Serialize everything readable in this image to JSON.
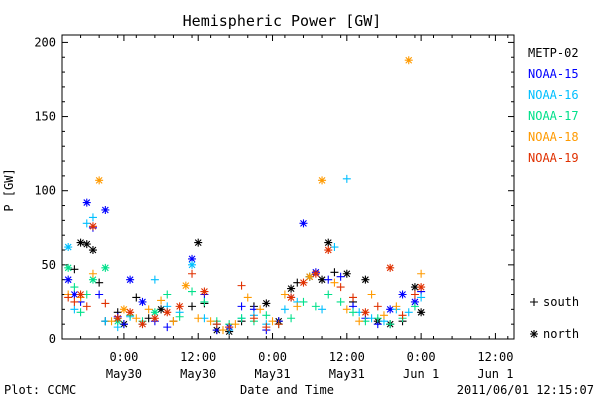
{
  "chart_data": {
    "type": "scatter",
    "title": "Hemispheric Power [GW]",
    "ylabel": "P [GW]",
    "xlabel": "Date and Time",
    "ylim": [
      0,
      205
    ],
    "xlim": [
      "2011-05-29T14:00",
      "2011-06-01T15:00"
    ],
    "yticks": [
      0,
      50,
      100,
      150,
      200
    ],
    "xticks": [
      {
        "t": "2011-05-30T00:00",
        "label1": "0:00",
        "label2": "May30"
      },
      {
        "t": "2011-05-30T12:00",
        "label1": "12:00",
        "label2": "May30"
      },
      {
        "t": "2011-05-31T00:00",
        "label1": "0:00",
        "label2": "May31"
      },
      {
        "t": "2011-05-31T12:00",
        "label1": "12:00",
        "label2": "May31"
      },
      {
        "t": "2011-06-01T00:00",
        "label1": "0:00",
        "label2": "Jun 1"
      },
      {
        "t": "2011-06-01T12:00",
        "label1": "12:00",
        "label2": "Jun 1"
      }
    ],
    "legend_position": "right",
    "marker_legend": [
      {
        "symbol": "+",
        "label": "south"
      },
      {
        "symbol": "*",
        "label": "north"
      }
    ],
    "series": [
      {
        "name": "METP-02",
        "color": "#000000",
        "points": [
          [
            "2011-05-29T16:00",
            47,
            "s"
          ],
          [
            "2011-05-29T17:00",
            65,
            "n"
          ],
          [
            "2011-05-29T18:00",
            64,
            "n"
          ],
          [
            "2011-05-29T19:00",
            60,
            "n"
          ],
          [
            "2011-05-29T20:00",
            38,
            "s"
          ],
          [
            "2011-05-29T21:00",
            12,
            "s"
          ],
          [
            "2011-05-29T23:00",
            18,
            "s"
          ],
          [
            "2011-05-30T00:00",
            10,
            "n"
          ],
          [
            "2011-05-30T02:00",
            28,
            "s"
          ],
          [
            "2011-05-30T04:00",
            14,
            "s"
          ],
          [
            "2011-05-30T06:00",
            20,
            "n"
          ],
          [
            "2011-05-30T08:00",
            12,
            "s"
          ],
          [
            "2011-05-30T11:00",
            22,
            "s"
          ],
          [
            "2011-05-30T12:00",
            65,
            "n"
          ],
          [
            "2011-05-30T13:00",
            24,
            "s"
          ],
          [
            "2011-05-30T15:00",
            6,
            "n"
          ],
          [
            "2011-05-30T17:00",
            5,
            "n"
          ],
          [
            "2011-05-30T19:00",
            12,
            "s"
          ],
          [
            "2011-05-30T21:00",
            22,
            "s"
          ],
          [
            "2011-05-30T23:00",
            24,
            "n"
          ],
          [
            "2011-05-31T01:00",
            12,
            "n"
          ],
          [
            "2011-05-31T03:00",
            34,
            "n"
          ],
          [
            "2011-05-31T04:00",
            38,
            "s"
          ],
          [
            "2011-05-31T06:00",
            42,
            "n"
          ],
          [
            "2011-05-31T08:00",
            40,
            "n"
          ],
          [
            "2011-05-31T09:00",
            65,
            "n"
          ],
          [
            "2011-05-31T10:00",
            45,
            "s"
          ],
          [
            "2011-05-31T12:00",
            44,
            "n"
          ],
          [
            "2011-05-31T13:00",
            25,
            "s"
          ],
          [
            "2011-05-31T15:00",
            40,
            "n"
          ],
          [
            "2011-05-31T17:00",
            12,
            "n"
          ],
          [
            "2011-05-31T19:00",
            10,
            "n"
          ],
          [
            "2011-05-31T21:00",
            12,
            "s"
          ],
          [
            "2011-05-31T23:00",
            35,
            "n"
          ],
          [
            "2011-06-01T00:00",
            18,
            "n"
          ]
        ]
      },
      {
        "name": "NOAA-15",
        "color": "#0000ff",
        "points": [
          [
            "2011-05-29T15:00",
            40,
            "n"
          ],
          [
            "2011-05-29T16:00",
            30,
            "n"
          ],
          [
            "2011-05-29T17:00",
            25,
            "s"
          ],
          [
            "2011-05-29T18:00",
            92,
            "n"
          ],
          [
            "2011-05-29T19:00",
            75,
            "s"
          ],
          [
            "2011-05-29T20:00",
            30,
            "s"
          ],
          [
            "2011-05-29T21:00",
            87,
            "n"
          ],
          [
            "2011-05-29T23:00",
            15,
            "s"
          ],
          [
            "2011-05-30T00:00",
            10,
            "s"
          ],
          [
            "2011-05-30T01:00",
            40,
            "n"
          ],
          [
            "2011-05-30T03:00",
            25,
            "n"
          ],
          [
            "2011-05-30T05:00",
            12,
            "s"
          ],
          [
            "2011-05-30T07:00",
            8,
            "s"
          ],
          [
            "2011-05-30T11:00",
            54,
            "n"
          ],
          [
            "2011-05-30T13:00",
            30,
            "s"
          ],
          [
            "2011-05-30T15:00",
            6,
            "s"
          ],
          [
            "2011-05-30T17:00",
            8,
            "n"
          ],
          [
            "2011-05-30T19:00",
            22,
            "s"
          ],
          [
            "2011-05-30T21:00",
            20,
            "s"
          ],
          [
            "2011-05-30T23:00",
            6,
            "s"
          ],
          [
            "2011-05-31T01:00",
            12,
            "s"
          ],
          [
            "2011-05-31T03:00",
            28,
            "s"
          ],
          [
            "2011-05-31T05:00",
            78,
            "n"
          ],
          [
            "2011-05-31T07:00",
            45,
            "n"
          ],
          [
            "2011-05-31T09:00",
            40,
            "s"
          ],
          [
            "2011-05-31T11:00",
            42,
            "s"
          ],
          [
            "2011-05-31T13:00",
            22,
            "s"
          ],
          [
            "2011-05-31T15:00",
            14,
            "s"
          ],
          [
            "2011-05-31T17:00",
            10,
            "s"
          ],
          [
            "2011-05-31T19:00",
            20,
            "n"
          ],
          [
            "2011-05-31T21:00",
            30,
            "n"
          ],
          [
            "2011-05-31T23:00",
            25,
            "n"
          ],
          [
            "2011-06-01T00:00",
            32,
            "s"
          ]
        ]
      },
      {
        "name": "NOAA-16",
        "color": "#00bfff",
        "points": [
          [
            "2011-05-29T15:00",
            62,
            "n"
          ],
          [
            "2011-05-29T16:00",
            20,
            "s"
          ],
          [
            "2011-05-29T18:00",
            78,
            "s"
          ],
          [
            "2011-05-29T19:00",
            82,
            "s"
          ],
          [
            "2011-05-29T21:00",
            12,
            "s"
          ],
          [
            "2011-05-29T23:00",
            8,
            "s"
          ],
          [
            "2011-05-30T01:00",
            15,
            "s"
          ],
          [
            "2011-05-30T03:00",
            10,
            "s"
          ],
          [
            "2011-05-30T05:00",
            40,
            "s"
          ],
          [
            "2011-05-30T07:00",
            22,
            "s"
          ],
          [
            "2011-05-30T09:00",
            18,
            "s"
          ],
          [
            "2011-05-30T11:00",
            50,
            "n"
          ],
          [
            "2011-05-30T13:00",
            14,
            "s"
          ],
          [
            "2011-05-30T15:00",
            10,
            "s"
          ],
          [
            "2011-05-30T17:00",
            6,
            "s"
          ],
          [
            "2011-05-30T19:00",
            14,
            "s"
          ],
          [
            "2011-05-30T21:00",
            16,
            "s"
          ],
          [
            "2011-05-30T23:00",
            10,
            "s"
          ],
          [
            "2011-05-31T02:00",
            20,
            "s"
          ],
          [
            "2011-05-31T04:00",
            25,
            "s"
          ],
          [
            "2011-05-31T06:00",
            42,
            "s"
          ],
          [
            "2011-05-31T08:00",
            20,
            "s"
          ],
          [
            "2011-05-31T10:00",
            62,
            "s"
          ],
          [
            "2011-05-31T12:00",
            108,
            "s"
          ],
          [
            "2011-05-31T14:00",
            18,
            "s"
          ],
          [
            "2011-05-31T16:00",
            14,
            "s"
          ],
          [
            "2011-05-31T18:00",
            12,
            "s"
          ],
          [
            "2011-05-31T20:00",
            20,
            "s"
          ],
          [
            "2011-05-31T22:00",
            18,
            "s"
          ],
          [
            "2011-06-01T00:00",
            28,
            "s"
          ]
        ]
      },
      {
        "name": "NOAA-17",
        "color": "#00e08a",
        "points": [
          [
            "2011-05-29T15:00",
            48,
            "n"
          ],
          [
            "2011-05-29T16:00",
            35,
            "s"
          ],
          [
            "2011-05-29T17:00",
            18,
            "s"
          ],
          [
            "2011-05-29T18:00",
            30,
            "s"
          ],
          [
            "2011-05-29T19:00",
            40,
            "n"
          ],
          [
            "2011-05-29T21:00",
            48,
            "n"
          ],
          [
            "2011-05-29T23:00",
            12,
            "n"
          ],
          [
            "2011-05-30T01:00",
            16,
            "s"
          ],
          [
            "2011-05-30T03:00",
            12,
            "s"
          ],
          [
            "2011-05-30T05:00",
            18,
            "n"
          ],
          [
            "2011-05-30T07:00",
            30,
            "s"
          ],
          [
            "2011-05-30T09:00",
            15,
            "s"
          ],
          [
            "2011-05-30T11:00",
            32,
            "s"
          ],
          [
            "2011-05-30T13:00",
            25,
            "s"
          ],
          [
            "2011-05-30T15:00",
            12,
            "s"
          ],
          [
            "2011-05-30T17:00",
            10,
            "s"
          ],
          [
            "2011-05-30T19:00",
            14,
            "s"
          ],
          [
            "2011-05-30T21:00",
            12,
            "s"
          ],
          [
            "2011-05-30T23:00",
            16,
            "s"
          ],
          [
            "2011-05-31T01:00",
            10,
            "s"
          ],
          [
            "2011-05-31T03:00",
            14,
            "s"
          ],
          [
            "2011-05-31T05:00",
            25,
            "s"
          ],
          [
            "2011-05-31T07:00",
            22,
            "s"
          ],
          [
            "2011-05-31T09:00",
            30,
            "s"
          ],
          [
            "2011-05-31T11:00",
            25,
            "s"
          ],
          [
            "2011-05-31T13:00",
            18,
            "s"
          ],
          [
            "2011-05-31T15:00",
            12,
            "s"
          ],
          [
            "2011-05-31T17:00",
            14,
            "s"
          ],
          [
            "2011-05-31T19:00",
            10,
            "s"
          ],
          [
            "2011-05-31T21:00",
            14,
            "s"
          ],
          [
            "2011-05-31T23:00",
            22,
            "s"
          ]
        ]
      },
      {
        "name": "NOAA-18",
        "color": "#ff9a00",
        "points": [
          [
            "2011-05-29T15:00",
            30,
            "s"
          ],
          [
            "2011-05-29T17:00",
            28,
            "s"
          ],
          [
            "2011-05-29T19:00",
            44,
            "s"
          ],
          [
            "2011-05-29T20:00",
            107,
            "n"
          ],
          [
            "2011-05-29T22:00",
            12,
            "s"
          ],
          [
            "2011-05-30T00:00",
            20,
            "n"
          ],
          [
            "2011-05-30T02:00",
            14,
            "s"
          ],
          [
            "2011-05-30T04:00",
            20,
            "s"
          ],
          [
            "2011-05-30T06:00",
            26,
            "s"
          ],
          [
            "2011-05-30T08:00",
            12,
            "s"
          ],
          [
            "2011-05-30T10:00",
            36,
            "n"
          ],
          [
            "2011-05-30T12:00",
            14,
            "s"
          ],
          [
            "2011-05-30T14:00",
            12,
            "s"
          ],
          [
            "2011-05-30T16:00",
            6,
            "s"
          ],
          [
            "2011-05-30T18:00",
            10,
            "s"
          ],
          [
            "2011-05-30T20:00",
            28,
            "s"
          ],
          [
            "2011-05-30T22:00",
            20,
            "s"
          ],
          [
            "2011-05-31T00:00",
            12,
            "s"
          ],
          [
            "2011-05-31T02:00",
            30,
            "s"
          ],
          [
            "2011-05-31T04:00",
            22,
            "s"
          ],
          [
            "2011-05-31T06:00",
            42,
            "n"
          ],
          [
            "2011-05-31T08:00",
            107,
            "n"
          ],
          [
            "2011-05-31T10:00",
            38,
            "s"
          ],
          [
            "2011-05-31T12:00",
            20,
            "s"
          ],
          [
            "2011-05-31T14:00",
            12,
            "s"
          ],
          [
            "2011-05-31T16:00",
            30,
            "s"
          ],
          [
            "2011-05-31T18:00",
            16,
            "s"
          ],
          [
            "2011-05-31T20:00",
            22,
            "s"
          ],
          [
            "2011-05-31T22:00",
            188,
            "n"
          ],
          [
            "2011-06-01T00:00",
            44,
            "s"
          ]
        ]
      },
      {
        "name": "NOAA-19",
        "color": "#e03000",
        "points": [
          [
            "2011-05-29T15:00",
            28,
            "s"
          ],
          [
            "2011-05-29T16:00",
            25,
            "s"
          ],
          [
            "2011-05-29T17:00",
            30,
            "n"
          ],
          [
            "2011-05-29T18:00",
            22,
            "s"
          ],
          [
            "2011-05-29T19:00",
            76,
            "n"
          ],
          [
            "2011-05-29T21:00",
            24,
            "s"
          ],
          [
            "2011-05-29T23:00",
            14,
            "n"
          ],
          [
            "2011-05-30T01:00",
            18,
            "n"
          ],
          [
            "2011-05-30T03:00",
            10,
            "n"
          ],
          [
            "2011-05-30T05:00",
            14,
            "n"
          ],
          [
            "2011-05-30T07:00",
            18,
            "n"
          ],
          [
            "2011-05-30T09:00",
            22,
            "n"
          ],
          [
            "2011-05-30T11:00",
            44,
            "s"
          ],
          [
            "2011-05-30T13:00",
            32,
            "n"
          ],
          [
            "2011-05-30T15:00",
            10,
            "s"
          ],
          [
            "2011-05-30T17:00",
            8,
            "s"
          ],
          [
            "2011-05-30T19:00",
            36,
            "s"
          ],
          [
            "2011-05-30T21:00",
            14,
            "s"
          ],
          [
            "2011-05-30T23:00",
            8,
            "s"
          ],
          [
            "2011-05-31T01:00",
            10,
            "s"
          ],
          [
            "2011-05-31T03:00",
            28,
            "n"
          ],
          [
            "2011-05-31T05:00",
            38,
            "n"
          ],
          [
            "2011-05-31T07:00",
            44,
            "n"
          ],
          [
            "2011-05-31T09:00",
            60,
            "n"
          ],
          [
            "2011-05-31T11:00",
            35,
            "s"
          ],
          [
            "2011-05-31T13:00",
            28,
            "s"
          ],
          [
            "2011-05-31T15:00",
            18,
            "n"
          ],
          [
            "2011-05-31T17:00",
            22,
            "s"
          ],
          [
            "2011-05-31T19:00",
            48,
            "n"
          ],
          [
            "2011-05-31T21:00",
            16,
            "s"
          ],
          [
            "2011-05-31T23:00",
            30,
            "s"
          ],
          [
            "2011-06-01T00:00",
            35,
            "n"
          ]
        ]
      }
    ]
  },
  "footer": {
    "plot_credit": "Plot: CCMC",
    "timestamp": "2011/06/01 12:15:07"
  }
}
